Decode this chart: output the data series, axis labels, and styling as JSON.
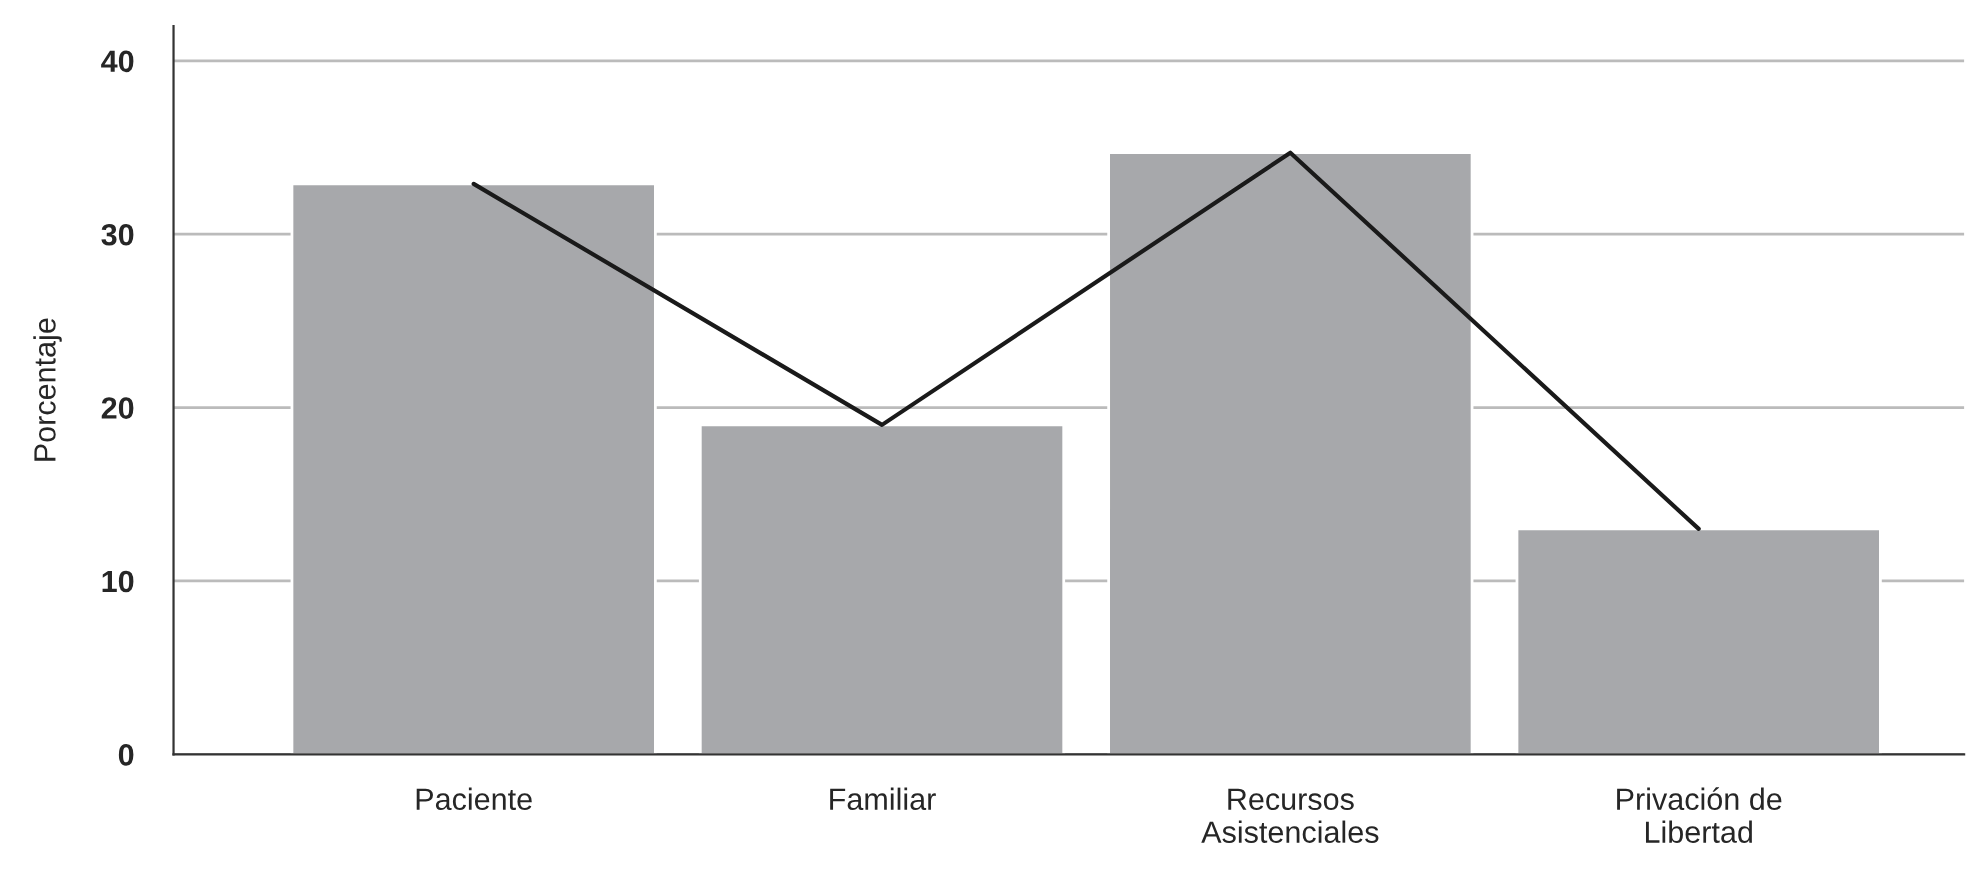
{
  "chart_data": {
    "type": "bar",
    "ylabel": "Porcentaje",
    "categories": [
      "Paciente",
      "Familiar",
      "Recursos\nAsistenciales",
      "Privación de\nLibertad"
    ],
    "series": [
      {
        "color": "#a7a8ab",
        "values": [
          32.9,
          19.0,
          34.7,
          13.0
        ]
      },
      {
        "type": "line",
        "color": "#1a1a1a",
        "values": [
          32.9,
          19.0,
          34.7,
          13.0
        ]
      }
    ],
    "ylim": [
      0,
      42
    ],
    "yticks": [
      0,
      10,
      20,
      30,
      40
    ],
    "grid": "y",
    "legend": false,
    "marker": "none",
    "line_style": "solid"
  }
}
